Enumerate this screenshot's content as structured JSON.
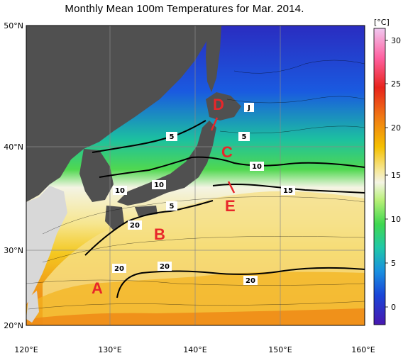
{
  "title": "Monthly Mean 100m Temperatures for Mar. 2014.",
  "colorbar": {
    "unit": "[°C]",
    "ticks": [
      "30",
      "25",
      "20",
      "15",
      "10",
      "5",
      "0"
    ],
    "colors": [
      "#e8b0e8",
      "#ff6fa0",
      "#e8241c",
      "#f07a14",
      "#f5b800",
      "#f5e080",
      "#f8f8e8",
      "#c0f07a",
      "#50e050",
      "#2ccf8c",
      "#1aa8c8",
      "#1a70e8",
      "#1a36d8",
      "#3818b8"
    ]
  },
  "axes": {
    "lon_labels": [
      "120°E",
      "130°E",
      "140°E",
      "150°E",
      "160°E"
    ],
    "lat_labels": [
      "50°N",
      "40°N",
      "30°N",
      "20°N"
    ]
  },
  "regions": [
    {
      "id": "A",
      "label": "A"
    },
    {
      "id": "B",
      "label": "B"
    },
    {
      "id": "C",
      "label": "C"
    },
    {
      "id": "D",
      "label": "D"
    },
    {
      "id": "E",
      "label": "E"
    }
  ],
  "contour_labels": [
    "5",
    "5",
    "5",
    "10",
    "10",
    "10",
    "15",
    "20",
    "20",
    "20",
    "20",
    "J"
  ],
  "colors": {
    "land_dark": "#505050",
    "land_light": "#d8d8d8",
    "region_label": "#e8262a"
  }
}
